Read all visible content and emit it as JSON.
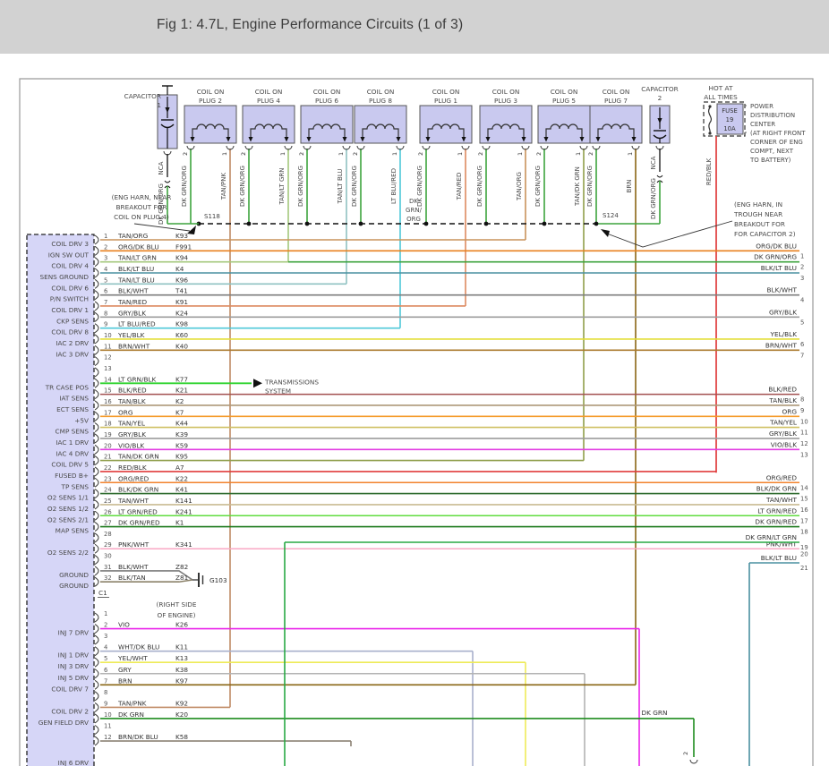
{
  "title": "Fig 1: 4.7L, Engine Performance Circuits (1 of 3)",
  "top_components": {
    "capacitor1": {
      "name": "CAPACITOR",
      "id": "1",
      "top_wire": "NCA",
      "bottom_wire": "DK GRN/ORG"
    },
    "capacitor2": {
      "name": "CAPACITOR",
      "id": "2",
      "top_wire": "NCA",
      "bottom_wire": "DK GRN/ORG"
    },
    "coils": [
      {
        "line1": "COIL ON",
        "line2": "PLUG 2",
        "pin2": "2",
        "pin1": "1",
        "pin2_wire": "DK GRN/ORG",
        "pin1_wire": "TAN/PNK"
      },
      {
        "line1": "COIL ON",
        "line2": "PLUG 4",
        "pin2": "2",
        "pin1": "1",
        "pin2_wire": "DK GRN/ORG",
        "pin1_wire": "TAN/LT GRN"
      },
      {
        "line1": "COIL ON",
        "line2": "PLUG 6",
        "pin2": "2",
        "pin1": "1",
        "pin2_wire": "DK GRN/ORG",
        "pin1_wire": "TAN/LT BLU"
      },
      {
        "line1": "COIL ON",
        "line2": "PLUG 8",
        "pin2": "2",
        "pin1": "1",
        "pin2_wire": "DK GRN/ORG",
        "pin1_wire": "LT BLU/RED"
      },
      {
        "line1": "COIL ON",
        "line2": "PLUG 1",
        "pin2": "2",
        "pin1": "1",
        "pin2_wire": "DK GRN/ORG",
        "pin1_wire": "TAN/RED"
      },
      {
        "line1": "COIL ON",
        "line2": "PLUG 3",
        "pin2": "2",
        "pin1": "1",
        "pin2_wire": "DK GRN/ORG",
        "pin1_wire": "TAN/ORG"
      },
      {
        "line1": "COIL ON",
        "line2": "PLUG 5",
        "pin2": "2",
        "pin1": "1",
        "pin2_wire": "DK GRN/ORG",
        "pin1_wire": "TAN/DK GRN"
      },
      {
        "line1": "COIL ON",
        "line2": "PLUG 7",
        "pin2": "2",
        "pin1": "1",
        "pin2_wire": "DK GRN/ORG",
        "pin1_wire": "BRN"
      }
    ],
    "fuse": {
      "header1": "HOT AT",
      "header2": "ALL TIMES",
      "label": "FUSE",
      "number": "19",
      "rating": "10A",
      "output_wire": "RED/BLK",
      "location_note": [
        "POWER",
        "DISTRIBUTION",
        "CENTER",
        "(AT RIGHT FRONT",
        "CORNER OF ENG",
        "COMPT, NEXT",
        "TO BATTERY)"
      ]
    }
  },
  "splices": {
    "s118": "S118",
    "s124": "S124",
    "bus_wire_label": [
      "DK",
      "GRN/",
      "ORG"
    ]
  },
  "notes": {
    "left": [
      "(ENG HARN, NEAR",
      "BREAKOUT FOR",
      "COIL ON PLUG 4)"
    ],
    "right": [
      "(ENG HARN, IN",
      "TROUGH NEAR",
      "BREAKOUT FOR",
      "FOR CAPACITOR 2)"
    ]
  },
  "pcm": {
    "connector_label": "C1",
    "ground": {
      "id": "G103",
      "location": [
        "(RIGHT SIDE",
        "OF ENGINE)"
      ]
    },
    "transmission": [
      "TRANSMISSIONS",
      "SYSTEM"
    ],
    "partial_label": "INJ 6 DRV",
    "c1_rows": [
      {
        "pin": "1",
        "label": "COIL DRV 3",
        "wire": "TAN/ORG",
        "code": "K93"
      },
      {
        "pin": "2",
        "label": "IGN SW OUT",
        "wire": "ORG/DK BLU",
        "code": "F991"
      },
      {
        "pin": "3",
        "label": "COIL DRV 4",
        "wire": "TAN/LT GRN",
        "code": "K94"
      },
      {
        "pin": "4",
        "label": "SENS GROUND",
        "wire": "BLK/LT BLU",
        "code": "K4"
      },
      {
        "pin": "5",
        "label": "COIL DRV 6",
        "wire": "TAN/LT BLU",
        "code": "K96"
      },
      {
        "pin": "6",
        "label": "P/N SWITCH",
        "wire": "BLK/WHT",
        "code": "T41"
      },
      {
        "pin": "7",
        "label": "COIL DRV 1",
        "wire": "TAN/RED",
        "code": "K91"
      },
      {
        "pin": "8",
        "label": "CKP SENS",
        "wire": "GRY/BLK",
        "code": "K24"
      },
      {
        "pin": "9",
        "label": "COIL DRV 8",
        "wire": "LT BLU/RED",
        "code": "K98"
      },
      {
        "pin": "10",
        "label": "IAC 2 DRV",
        "wire": "YEL/BLK",
        "code": "K60"
      },
      {
        "pin": "11",
        "label": "IAC 3 DRV",
        "wire": "BRN/WHT",
        "code": "K40"
      },
      {
        "pin": "12",
        "label": "",
        "wire": "",
        "code": ""
      },
      {
        "pin": "13",
        "label": "",
        "wire": "",
        "code": ""
      },
      {
        "pin": "14",
        "label": "TR CASE POS",
        "wire": "LT GRN/BLK",
        "code": "K77"
      },
      {
        "pin": "15",
        "label": "IAT SENS",
        "wire": "BLK/RED",
        "code": "K21"
      },
      {
        "pin": "16",
        "label": "ECT SENS",
        "wire": "TAN/BLK",
        "code": "K2"
      },
      {
        "pin": "17",
        "label": "+5V",
        "wire": "ORG",
        "code": "K7"
      },
      {
        "pin": "18",
        "label": "CMP SENS",
        "wire": "TAN/YEL",
        "code": "K44"
      },
      {
        "pin": "19",
        "label": "IAC 1 DRV",
        "wire": "GRY/BLK",
        "code": "K39"
      },
      {
        "pin": "20",
        "label": "IAC 4 DRV",
        "wire": "VIO/BLK",
        "code": "K59"
      },
      {
        "pin": "21",
        "label": "COIL DRV 5",
        "wire": "TAN/DK GRN",
        "code": "K95"
      },
      {
        "pin": "22",
        "label": "FUSED B+",
        "wire": "RED/BLK",
        "code": "A7"
      },
      {
        "pin": "23",
        "label": "TP SENS",
        "wire": "ORG/RED",
        "code": "K22"
      },
      {
        "pin": "24",
        "label": "O2 SENS 1/1",
        "wire": "BLK/DK GRN",
        "code": "K41"
      },
      {
        "pin": "25",
        "label": "O2 SENS 1/2",
        "wire": "TAN/WHT",
        "code": "K141"
      },
      {
        "pin": "26",
        "label": "O2 SENS 2/1",
        "wire": "LT GRN/RED",
        "code": "K241"
      },
      {
        "pin": "27",
        "label": "MAP SENS",
        "wire": "DK GRN/RED",
        "code": "K1"
      },
      {
        "pin": "28",
        "label": "",
        "wire": "",
        "code": ""
      },
      {
        "pin": "29",
        "label": "O2 SENS 2/2",
        "wire": "PNK/WHT",
        "code": "K341"
      },
      {
        "pin": "30",
        "label": "",
        "wire": "",
        "code": ""
      },
      {
        "pin": "31",
        "label": "GROUND",
        "wire": "BLK/WHT",
        "code": "Z82"
      },
      {
        "pin": "32",
        "label": "GROUND",
        "wire": "BLK/TAN",
        "code": "Z81"
      }
    ],
    "c2_rows": [
      {
        "pin": "1",
        "label": "",
        "wire": "",
        "code": ""
      },
      {
        "pin": "2",
        "label": "INJ 7 DRV",
        "wire": "VIO",
        "code": "K26"
      },
      {
        "pin": "3",
        "label": "",
        "wire": "",
        "code": ""
      },
      {
        "pin": "4",
        "label": "INJ 1 DRV",
        "wire": "WHT/DK BLU",
        "code": "K11"
      },
      {
        "pin": "5",
        "label": "INJ 3 DRV",
        "wire": "YEL/WHT",
        "code": "K13"
      },
      {
        "pin": "6",
        "label": "INJ 5 DRV",
        "wire": "GRY",
        "code": "K38"
      },
      {
        "pin": "7",
        "label": "COIL DRV 7",
        "wire": "BRN",
        "code": "K97"
      },
      {
        "pin": "8",
        "label": "",
        "wire": "",
        "code": ""
      },
      {
        "pin": "9",
        "label": "COIL DRV 2",
        "wire": "TAN/PNK",
        "code": "K92"
      },
      {
        "pin": "10",
        "label": "GEN FIELD DRV",
        "wire": "DK GRN",
        "code": "K20"
      },
      {
        "pin": "11",
        "label": "",
        "wire": "",
        "code": ""
      },
      {
        "pin": "12",
        "label": "",
        "wire": "BRN/DK BLU",
        "code": "K58"
      }
    ]
  },
  "right_exits": [
    {
      "n": "1",
      "wire": "ORG/DK BLU"
    },
    {
      "n": "2",
      "wire": "DK GRN/ORG"
    },
    {
      "n": "3",
      "wire": "BLK/LT BLU"
    },
    {
      "n": "4",
      "wire": "BLK/WHT"
    },
    {
      "n": "5",
      "wire": "GRY/BLK"
    },
    {
      "n": "6",
      "wire": "YEL/BLK"
    },
    {
      "n": "7",
      "wire": "BRN/WHT"
    },
    {
      "n": "8",
      "wire": "BLK/RED"
    },
    {
      "n": "9",
      "wire": "TAN/BLK"
    },
    {
      "n": "10",
      "wire": "ORG"
    },
    {
      "n": "11",
      "wire": "TAN/YEL"
    },
    {
      "n": "12",
      "wire": "GRY/BLK"
    },
    {
      "n": "13",
      "wire": "VIO/BLK"
    },
    {
      "n": "14",
      "wire": "ORG/RED"
    },
    {
      "n": "15",
      "wire": "BLK/DK GRN"
    },
    {
      "n": "16",
      "wire": "TAN/WHT"
    },
    {
      "n": "17",
      "wire": "LT GRN/RED"
    },
    {
      "n": "18",
      "wire": "DK GRN/RED"
    },
    {
      "n": "19",
      "wire": "DK GRN/LT GRN"
    },
    {
      "n": "20",
      "wire": "PNK/WHT"
    },
    {
      "n": "21",
      "wire": "BLK/LT BLU"
    }
  ],
  "bottom_labels": {
    "dk_grn": "DK GRN",
    "pin2": "2"
  }
}
